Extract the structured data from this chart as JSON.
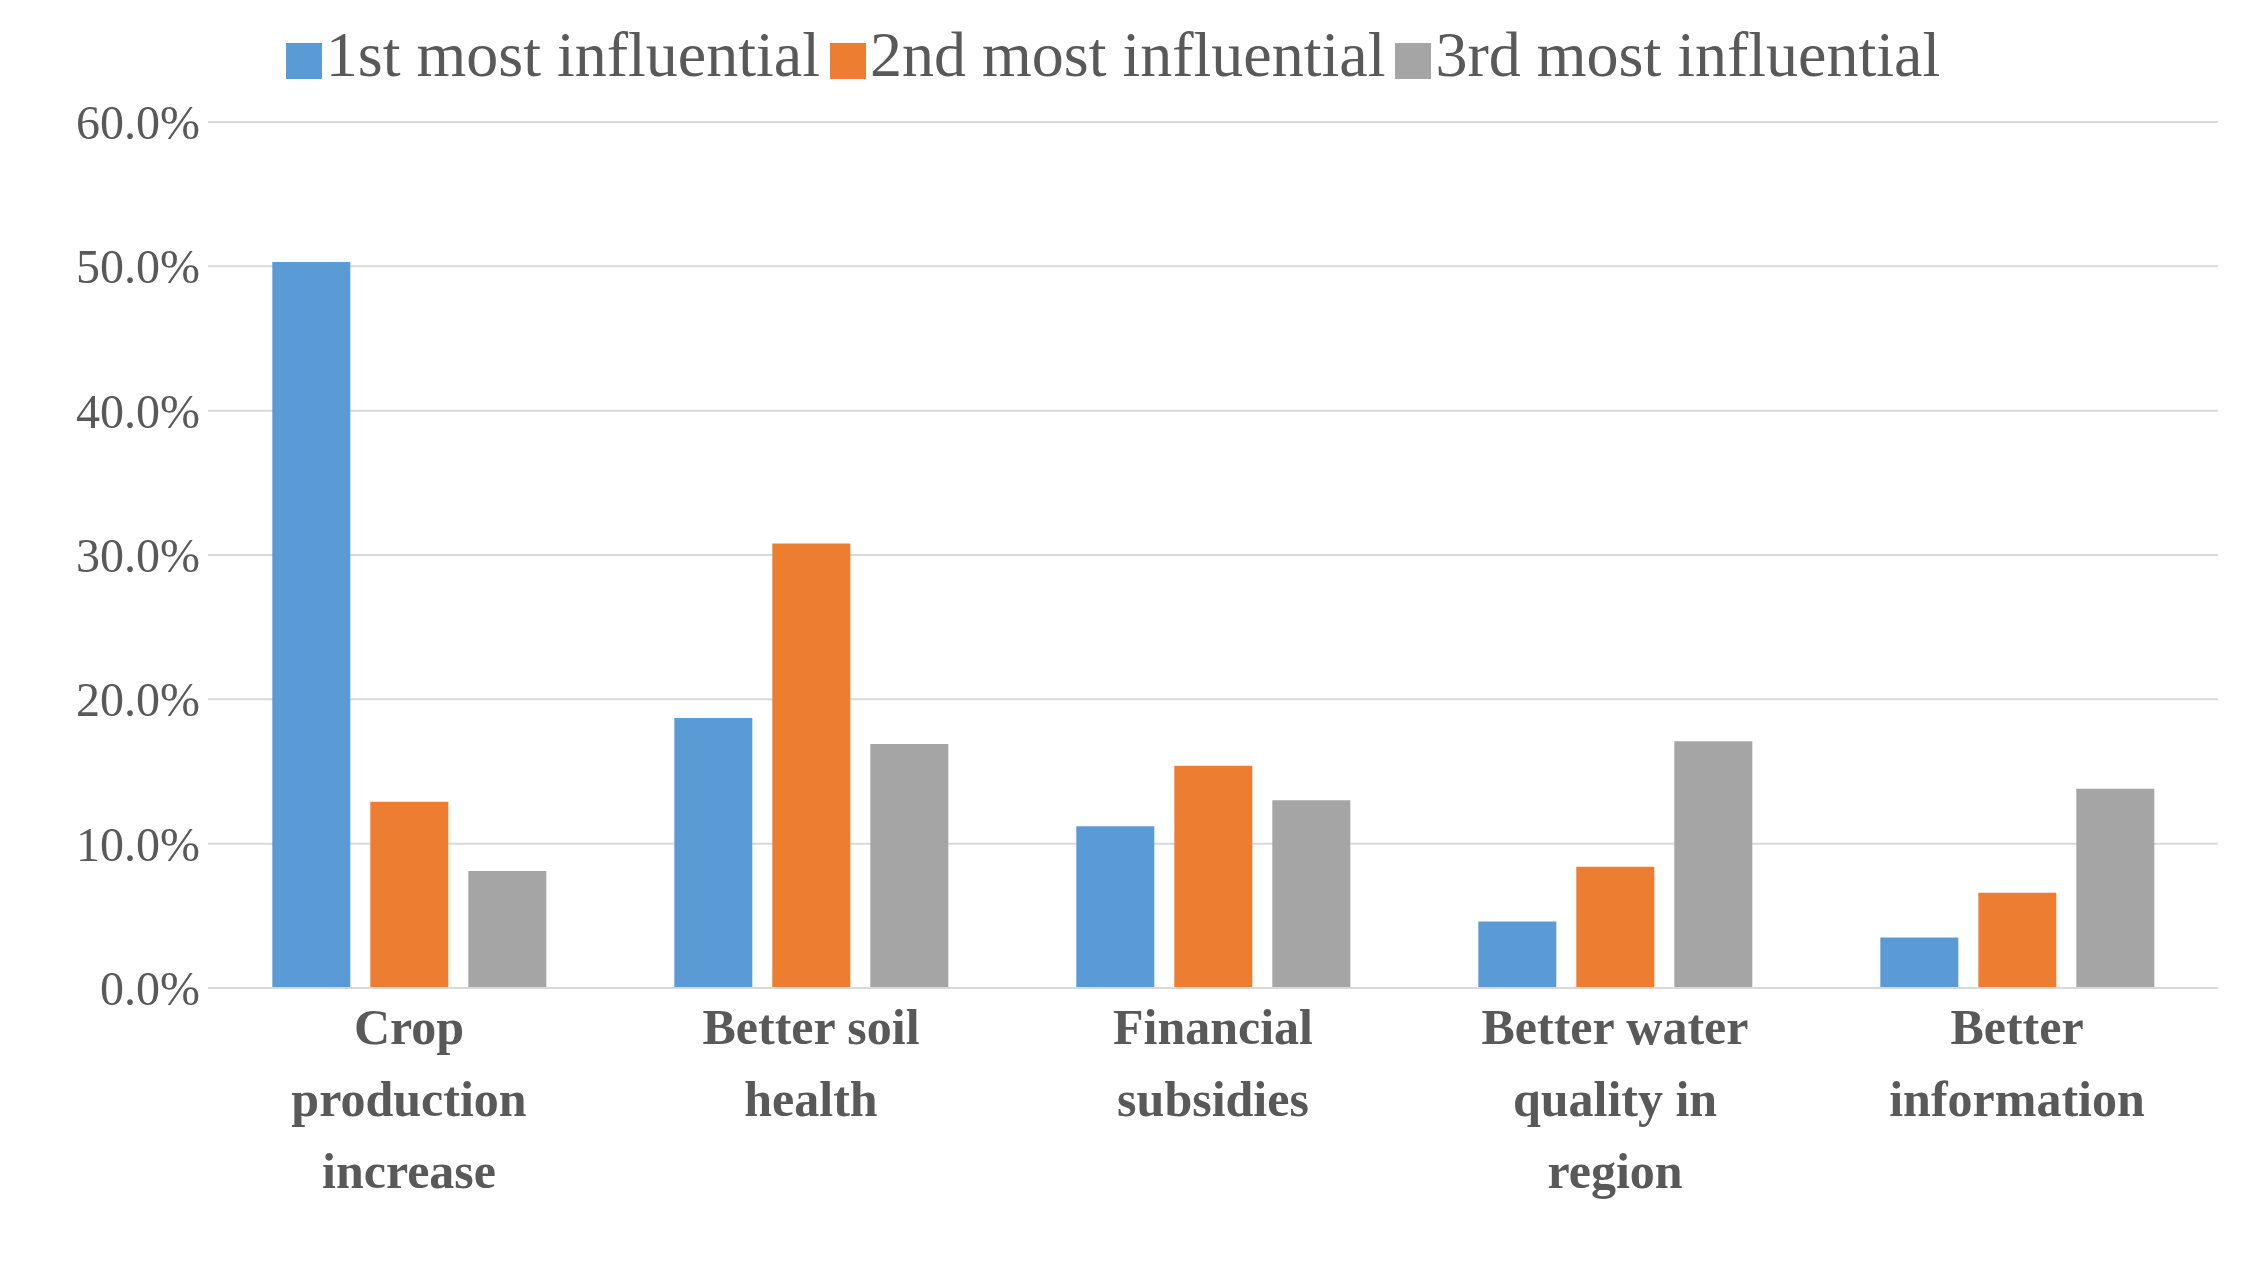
{
  "chart_data": {
    "type": "bar",
    "categories": [
      "Crop production increase",
      "Better soil health",
      "Financial subsidies",
      "Better water quality in region",
      "Better information"
    ],
    "series": [
      {
        "name": "1st most influential",
        "color": "#5b9bd5",
        "values": [
          50.3,
          18.7,
          11.2,
          4.6,
          3.5
        ]
      },
      {
        "name": "2nd most influential",
        "color": "#ed7d31",
        "values": [
          12.9,
          30.8,
          15.4,
          8.4,
          6.6
        ]
      },
      {
        "name": "3rd most influential",
        "color": "#a5a5a5",
        "values": [
          8.1,
          16.9,
          13.0,
          17.1,
          13.8
        ]
      }
    ],
    "ylim": [
      0,
      60
    ],
    "yticks": [
      {
        "value": 0,
        "label": "0.0%"
      },
      {
        "value": 10,
        "label": "10.0%"
      },
      {
        "value": 20,
        "label": "20.0%"
      },
      {
        "value": 30,
        "label": "30.0%"
      },
      {
        "value": 40,
        "label": "40.0%"
      },
      {
        "value": 50,
        "label": "50.0%"
      },
      {
        "value": 60,
        "label": "60.0%"
      }
    ],
    "grid": "y",
    "legend": "top"
  }
}
